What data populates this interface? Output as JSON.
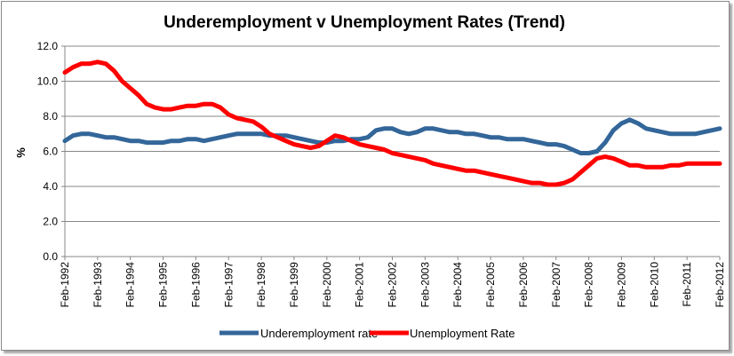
{
  "chart_data": {
    "type": "line",
    "title": "Underemployment v Unemployment Rates (Trend)",
    "xlabel": "",
    "ylabel": "%",
    "ylim": [
      0,
      12
    ],
    "yticks": [
      "0.0",
      "2.0",
      "4.0",
      "6.0",
      "8.0",
      "10.0",
      "12.0"
    ],
    "xticks": [
      "Feb-1992",
      "Feb-1993",
      "Feb-1994",
      "Feb-1995",
      "Feb-1996",
      "Feb-1997",
      "Feb-1998",
      "Feb-1999",
      "Feb-2000",
      "Feb-2001",
      "Feb-2002",
      "Feb-2003",
      "Feb-2004",
      "Feb-2005",
      "Feb-2006",
      "Feb-2007",
      "Feb-2008",
      "Feb-2009",
      "Feb-2010",
      "Feb-2011",
      "Feb-2012"
    ],
    "x": [
      "Feb-1992",
      "May-1992",
      "Aug-1992",
      "Nov-1992",
      "Feb-1993",
      "May-1993",
      "Aug-1993",
      "Nov-1993",
      "Feb-1994",
      "May-1994",
      "Aug-1994",
      "Nov-1994",
      "Feb-1995",
      "May-1995",
      "Aug-1995",
      "Nov-1995",
      "Feb-1996",
      "May-1996",
      "Aug-1996",
      "Nov-1996",
      "Feb-1997",
      "May-1997",
      "Aug-1997",
      "Nov-1997",
      "Feb-1998",
      "May-1998",
      "Aug-1998",
      "Nov-1998",
      "Feb-1999",
      "May-1999",
      "Aug-1999",
      "Nov-1999",
      "Feb-2000",
      "May-2000",
      "Aug-2000",
      "Nov-2000",
      "Feb-2001",
      "May-2001",
      "Aug-2001",
      "Nov-2001",
      "Feb-2002",
      "May-2002",
      "Aug-2002",
      "Nov-2002",
      "Feb-2003",
      "May-2003",
      "Aug-2003",
      "Nov-2003",
      "Feb-2004",
      "May-2004",
      "Aug-2004",
      "Nov-2004",
      "Feb-2005",
      "May-2005",
      "Aug-2005",
      "Nov-2005",
      "Feb-2006",
      "May-2006",
      "Aug-2006",
      "Nov-2006",
      "Feb-2007",
      "May-2007",
      "Aug-2007",
      "Nov-2007",
      "Feb-2008",
      "May-2008",
      "Aug-2008",
      "Nov-2008",
      "Feb-2009",
      "May-2009",
      "Aug-2009",
      "Nov-2009",
      "Feb-2010",
      "May-2010",
      "Aug-2010",
      "Nov-2010",
      "Feb-2011",
      "May-2011",
      "Aug-2011",
      "Nov-2011",
      "Feb-2012"
    ],
    "series": [
      {
        "name": "Underemployment rate",
        "color": "#336699",
        "values": [
          6.6,
          6.9,
          7.0,
          7.0,
          6.9,
          6.8,
          6.8,
          6.7,
          6.6,
          6.6,
          6.5,
          6.5,
          6.5,
          6.6,
          6.6,
          6.7,
          6.7,
          6.6,
          6.7,
          6.8,
          6.9,
          7.0,
          7.0,
          7.0,
          7.0,
          6.9,
          6.9,
          6.9,
          6.8,
          6.7,
          6.6,
          6.5,
          6.5,
          6.6,
          6.6,
          6.7,
          6.7,
          6.8,
          7.2,
          7.3,
          7.3,
          7.1,
          7.0,
          7.1,
          7.3,
          7.3,
          7.2,
          7.1,
          7.1,
          7.0,
          7.0,
          6.9,
          6.8,
          6.8,
          6.7,
          6.7,
          6.7,
          6.6,
          6.5,
          6.4,
          6.4,
          6.3,
          6.1,
          5.9,
          5.9,
          6.0,
          6.5,
          7.2,
          7.6,
          7.8,
          7.6,
          7.3,
          7.2,
          7.1,
          7.0,
          7.0,
          7.0,
          7.0,
          7.1,
          7.2,
          7.3
        ]
      },
      {
        "name": "Unemployment Rate",
        "color": "#ff0000",
        "values": [
          10.5,
          10.8,
          11.0,
          11.0,
          11.1,
          11.0,
          10.6,
          10.0,
          9.6,
          9.2,
          8.7,
          8.5,
          8.4,
          8.4,
          8.5,
          8.6,
          8.6,
          8.7,
          8.7,
          8.5,
          8.1,
          7.9,
          7.8,
          7.7,
          7.4,
          7.0,
          6.8,
          6.6,
          6.4,
          6.3,
          6.2,
          6.3,
          6.6,
          6.9,
          6.8,
          6.6,
          6.4,
          6.3,
          6.2,
          6.1,
          5.9,
          5.8,
          5.7,
          5.6,
          5.5,
          5.3,
          5.2,
          5.1,
          5.0,
          4.9,
          4.9,
          4.8,
          4.7,
          4.6,
          4.5,
          4.4,
          4.3,
          4.2,
          4.2,
          4.1,
          4.1,
          4.2,
          4.4,
          4.8,
          5.2,
          5.6,
          5.7,
          5.6,
          5.4,
          5.2,
          5.2,
          5.1,
          5.1,
          5.1,
          5.2,
          5.2,
          5.3,
          5.3,
          5.3,
          5.3,
          5.3
        ]
      }
    ],
    "grid": "horizontal",
    "legend": "bottom"
  }
}
